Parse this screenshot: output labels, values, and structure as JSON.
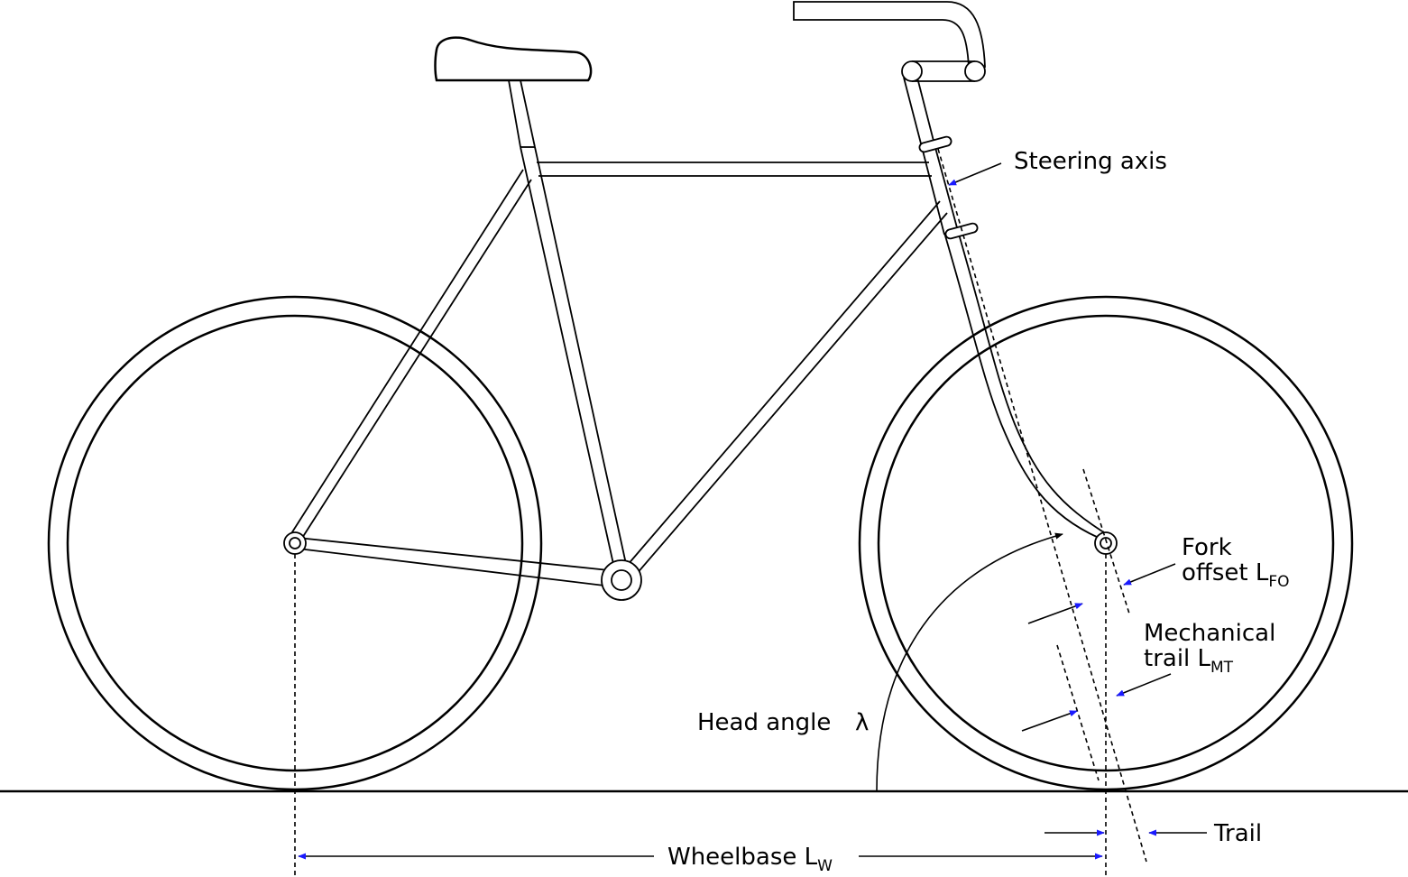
{
  "labels": {
    "steering_axis": "Steering axis",
    "fork_offset_line1": "Fork",
    "fork_offset_line2": "offset L",
    "fork_offset_sub": "FO",
    "mechanical_trail_line1": "Mechanical",
    "mechanical_trail_line2": "trail L",
    "mechanical_trail_sub": "MT",
    "head_angle": "Head angle",
    "head_angle_symbol": "λ",
    "trail": "Trail",
    "wheelbase": "Wheelbase L",
    "wheelbase_sub": "W"
  },
  "colors": {
    "line": "#000000",
    "arrow": "#1a1aff"
  }
}
